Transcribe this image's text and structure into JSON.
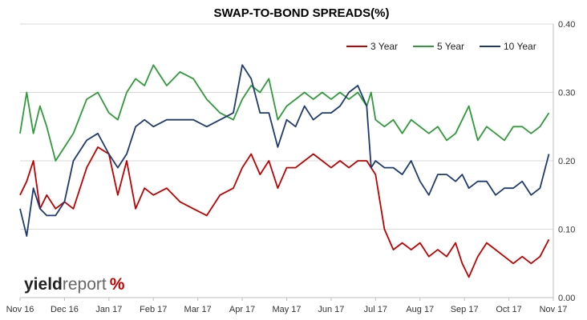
{
  "chart_data": {
    "type": "line",
    "title": "SWAP-TO-BOND SPREADS(%)",
    "xlabel": "",
    "ylabel": "",
    "ylim": [
      0,
      0.4
    ],
    "y_ticks": [
      "0.00",
      "0.10",
      "0.20",
      "0.30",
      "0.40"
    ],
    "x_ticks": [
      "Nov 16",
      "Dec 16",
      "Jan 17",
      "Feb 17",
      "Mar 17",
      "Apr 17",
      "May 17",
      "Jun 17",
      "Jul 17",
      "Aug 17",
      "Sep 17",
      "Oct 17",
      "Nov 17"
    ],
    "x_range": [
      0,
      12
    ],
    "grid": "horizontal",
    "legend_position": "top-right",
    "series": [
      {
        "name": "3 Year",
        "color": "#c00000",
        "x": [
          0,
          0.15,
          0.3,
          0.45,
          0.6,
          0.8,
          1.0,
          1.2,
          1.5,
          1.75,
          2.0,
          2.2,
          2.4,
          2.6,
          2.8,
          3.0,
          3.3,
          3.6,
          3.9,
          4.2,
          4.5,
          4.8,
          5.0,
          5.2,
          5.4,
          5.6,
          5.8,
          6.0,
          6.2,
          6.4,
          6.6,
          6.8,
          7.0,
          7.2,
          7.4,
          7.6,
          7.8,
          7.9,
          8.0,
          8.2,
          8.4,
          8.6,
          8.8,
          9.0,
          9.2,
          9.4,
          9.6,
          9.8,
          9.95,
          10.1,
          10.3,
          10.5,
          10.7,
          10.9,
          11.1,
          11.3,
          11.5,
          11.7,
          11.9
        ],
        "values": [
          0.15,
          0.17,
          0.2,
          0.13,
          0.15,
          0.13,
          0.14,
          0.13,
          0.19,
          0.22,
          0.21,
          0.15,
          0.2,
          0.13,
          0.16,
          0.15,
          0.16,
          0.14,
          0.13,
          0.12,
          0.15,
          0.16,
          0.19,
          0.21,
          0.18,
          0.2,
          0.16,
          0.19,
          0.19,
          0.2,
          0.21,
          0.2,
          0.19,
          0.2,
          0.19,
          0.2,
          0.2,
          0.19,
          0.18,
          0.1,
          0.07,
          0.08,
          0.07,
          0.08,
          0.06,
          0.07,
          0.06,
          0.08,
          0.05,
          0.03,
          0.06,
          0.08,
          0.07,
          0.06,
          0.05,
          0.06,
          0.05,
          0.06,
          0.085
        ]
      },
      {
        "name": "5 Year",
        "color": "#2f9a3a",
        "x": [
          0,
          0.15,
          0.3,
          0.45,
          0.6,
          0.8,
          1.0,
          1.2,
          1.5,
          1.75,
          2.0,
          2.2,
          2.4,
          2.6,
          2.8,
          3.0,
          3.3,
          3.6,
          3.9,
          4.2,
          4.5,
          4.8,
          5.0,
          5.2,
          5.4,
          5.6,
          5.8,
          6.0,
          6.2,
          6.4,
          6.6,
          6.8,
          7.0,
          7.2,
          7.4,
          7.6,
          7.8,
          7.9,
          8.0,
          8.2,
          8.4,
          8.6,
          8.8,
          9.0,
          9.2,
          9.4,
          9.6,
          9.8,
          9.95,
          10.1,
          10.3,
          10.5,
          10.7,
          10.9,
          11.1,
          11.3,
          11.5,
          11.7,
          11.9
        ],
        "values": [
          0.24,
          0.3,
          0.24,
          0.28,
          0.25,
          0.2,
          0.22,
          0.24,
          0.29,
          0.3,
          0.27,
          0.26,
          0.3,
          0.32,
          0.31,
          0.34,
          0.31,
          0.33,
          0.32,
          0.29,
          0.27,
          0.26,
          0.29,
          0.31,
          0.3,
          0.32,
          0.26,
          0.28,
          0.29,
          0.3,
          0.29,
          0.3,
          0.29,
          0.3,
          0.29,
          0.3,
          0.28,
          0.3,
          0.26,
          0.25,
          0.26,
          0.24,
          0.26,
          0.25,
          0.24,
          0.25,
          0.23,
          0.24,
          0.26,
          0.28,
          0.23,
          0.25,
          0.24,
          0.23,
          0.25,
          0.25,
          0.24,
          0.25,
          0.27
        ]
      },
      {
        "name": "10 Year",
        "color": "#1f3a6e",
        "x": [
          0,
          0.15,
          0.3,
          0.45,
          0.6,
          0.8,
          1.0,
          1.2,
          1.5,
          1.75,
          2.0,
          2.2,
          2.4,
          2.6,
          2.8,
          3.0,
          3.3,
          3.6,
          3.9,
          4.2,
          4.5,
          4.8,
          5.0,
          5.2,
          5.4,
          5.6,
          5.8,
          6.0,
          6.2,
          6.4,
          6.6,
          6.8,
          7.0,
          7.2,
          7.4,
          7.6,
          7.8,
          7.9,
          8.0,
          8.2,
          8.4,
          8.6,
          8.8,
          9.0,
          9.2,
          9.4,
          9.6,
          9.8,
          9.95,
          10.1,
          10.3,
          10.5,
          10.7,
          10.9,
          11.1,
          11.3,
          11.5,
          11.7,
          11.9
        ],
        "values": [
          0.13,
          0.09,
          0.16,
          0.13,
          0.12,
          0.12,
          0.14,
          0.2,
          0.23,
          0.24,
          0.21,
          0.19,
          0.21,
          0.25,
          0.26,
          0.25,
          0.26,
          0.26,
          0.26,
          0.25,
          0.26,
          0.27,
          0.34,
          0.32,
          0.27,
          0.27,
          0.22,
          0.26,
          0.25,
          0.28,
          0.26,
          0.27,
          0.27,
          0.28,
          0.3,
          0.31,
          0.28,
          0.19,
          0.2,
          0.19,
          0.19,
          0.18,
          0.2,
          0.17,
          0.15,
          0.18,
          0.18,
          0.17,
          0.18,
          0.16,
          0.17,
          0.17,
          0.15,
          0.16,
          0.16,
          0.17,
          0.15,
          0.16,
          0.21
        ]
      }
    ]
  },
  "logo": {
    "text_yield": "yield",
    "text_report": "report",
    "text_symbol": "%"
  }
}
